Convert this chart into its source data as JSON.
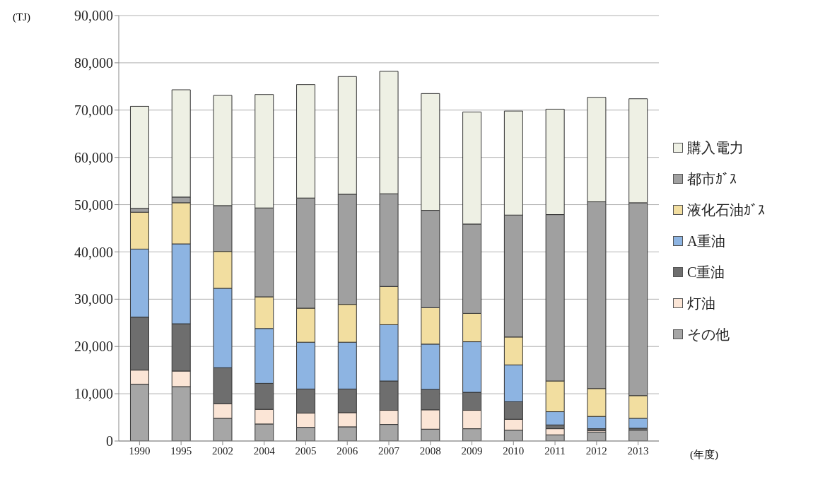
{
  "chart_data": {
    "type": "bar",
    "stacked": true,
    "ylabel": "(TJ)",
    "xlabel": "(年度)",
    "categories": [
      "1990",
      "1995",
      "2002",
      "2004",
      "2005",
      "2006",
      "2007",
      "2008",
      "2009",
      "2010",
      "2011",
      "2012",
      "2013"
    ],
    "series": [
      {
        "name": "その他",
        "color": "#a6a6a6",
        "values": [
          12000,
          11500,
          4800,
          3600,
          2900,
          3000,
          3500,
          2500,
          2600,
          2300,
          1300,
          1900,
          2300
        ]
      },
      {
        "name": "灯油",
        "color": "#fbe5d6",
        "values": [
          3000,
          3300,
          3100,
          3100,
          3000,
          3000,
          3000,
          4100,
          3900,
          2300,
          1300,
          300,
          null
        ]
      },
      {
        "name": "C重油",
        "color": "#6e6e6e",
        "values": [
          11200,
          10000,
          7600,
          5500,
          5100,
          5000,
          6200,
          4300,
          3800,
          3700,
          800,
          400,
          400
        ]
      },
      {
        "name": "A重油",
        "color": "#8db4e2",
        "values": [
          14400,
          16900,
          16800,
          11600,
          9900,
          9900,
          11900,
          9600,
          10700,
          7800,
          2800,
          2600,
          2100
        ]
      },
      {
        "name": "液化石油ｶﾞｽ",
        "color": "#f2dea0",
        "values": [
          7800,
          8700,
          7800,
          6700,
          7200,
          8000,
          8100,
          7700,
          6000,
          5900,
          6500,
          5900,
          4800
        ]
      },
      {
        "name": "都市ｶﾞｽ",
        "color": "#a0a0a0",
        "values": [
          800,
          1200,
          9700,
          18800,
          23300,
          23300,
          19600,
          20600,
          18900,
          25800,
          35200,
          39500,
          40800
        ]
      },
      {
        "name": "購入電力",
        "color": "#eef0e4",
        "values": [
          21600,
          22700,
          23300,
          24000,
          24000,
          24900,
          25900,
          24700,
          23700,
          22000,
          22300,
          22100,
          22000
        ]
      }
    ],
    "ylim": [
      0,
      90000
    ],
    "yticks": [
      0,
      {
        "value": 10000,
        "label": "10,000"
      },
      {
        "value": 20000,
        "label": "20,000"
      },
      {
        "value": 30000,
        "label": "30,000"
      },
      {
        "value": 40000,
        "label": "40,000"
      },
      {
        "value": 50000,
        "label": "50,000"
      },
      {
        "value": 60000,
        "label": "60,000"
      },
      {
        "value": 70000,
        "label": "70,000"
      },
      {
        "value": 80000,
        "label": "80,000"
      },
      {
        "value": 90000,
        "label": "90,000"
      }
    ],
    "grid": "y",
    "legend": "right"
  }
}
